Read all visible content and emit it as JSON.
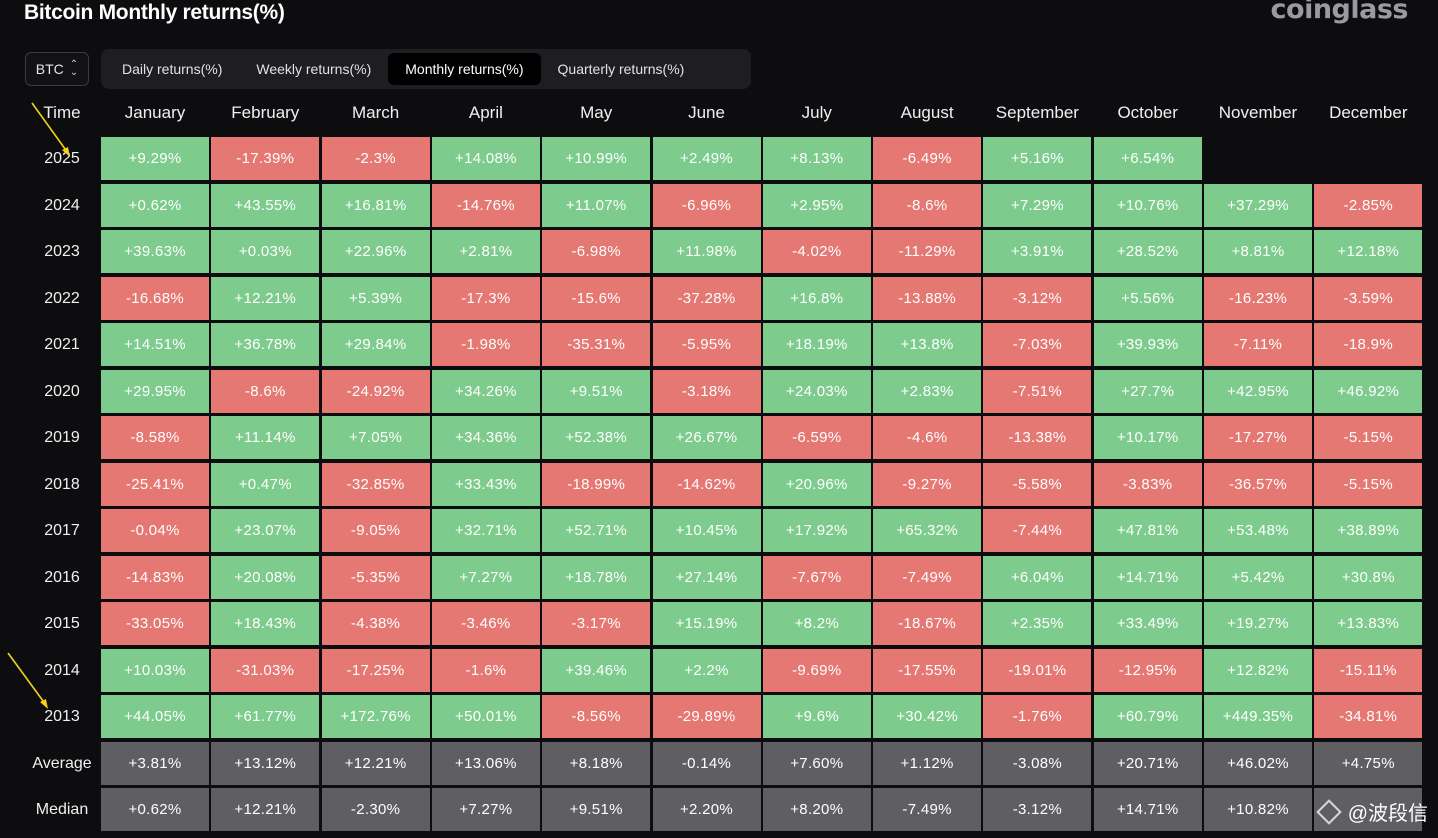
{
  "title": "Bitcoin Monthly returns(%)",
  "brand": "coinglass",
  "coin_select": {
    "value": "BTC",
    "icon": "chevron-updown-icon"
  },
  "tabs": [
    {
      "label": "Daily returns(%)",
      "active": false
    },
    {
      "label": "Weekly returns(%)",
      "active": false
    },
    {
      "label": "Monthly returns(%)",
      "active": true
    },
    {
      "label": "Quarterly returns(%)",
      "active": false
    }
  ],
  "table": {
    "row_header": "Time",
    "months": [
      "January",
      "February",
      "March",
      "April",
      "May",
      "June",
      "July",
      "August",
      "September",
      "October",
      "November",
      "December"
    ],
    "rows": [
      {
        "label": "2025",
        "values": [
          "+9.29%",
          "-17.39%",
          "-2.3%",
          "+14.08%",
          "+10.99%",
          "+2.49%",
          "+8.13%",
          "-6.49%",
          "+5.16%",
          "+6.54%",
          "",
          ""
        ]
      },
      {
        "label": "2024",
        "values": [
          "+0.62%",
          "+43.55%",
          "+16.81%",
          "-14.76%",
          "+11.07%",
          "-6.96%",
          "+2.95%",
          "-8.6%",
          "+7.29%",
          "+10.76%",
          "+37.29%",
          "-2.85%"
        ]
      },
      {
        "label": "2023",
        "values": [
          "+39.63%",
          "+0.03%",
          "+22.96%",
          "+2.81%",
          "-6.98%",
          "+11.98%",
          "-4.02%",
          "-11.29%",
          "+3.91%",
          "+28.52%",
          "+8.81%",
          "+12.18%"
        ]
      },
      {
        "label": "2022",
        "values": [
          "-16.68%",
          "+12.21%",
          "+5.39%",
          "-17.3%",
          "-15.6%",
          "-37.28%",
          "+16.8%",
          "-13.88%",
          "-3.12%",
          "+5.56%",
          "-16.23%",
          "-3.59%"
        ]
      },
      {
        "label": "2021",
        "values": [
          "+14.51%",
          "+36.78%",
          "+29.84%",
          "-1.98%",
          "-35.31%",
          "-5.95%",
          "+18.19%",
          "+13.8%",
          "-7.03%",
          "+39.93%",
          "-7.11%",
          "-18.9%"
        ]
      },
      {
        "label": "2020",
        "values": [
          "+29.95%",
          "-8.6%",
          "-24.92%",
          "+34.26%",
          "+9.51%",
          "-3.18%",
          "+24.03%",
          "+2.83%",
          "-7.51%",
          "+27.7%",
          "+42.95%",
          "+46.92%"
        ]
      },
      {
        "label": "2019",
        "values": [
          "-8.58%",
          "+11.14%",
          "+7.05%",
          "+34.36%",
          "+52.38%",
          "+26.67%",
          "-6.59%",
          "-4.6%",
          "-13.38%",
          "+10.17%",
          "-17.27%",
          "-5.15%"
        ]
      },
      {
        "label": "2018",
        "values": [
          "-25.41%",
          "+0.47%",
          "-32.85%",
          "+33.43%",
          "-18.99%",
          "-14.62%",
          "+20.96%",
          "-9.27%",
          "-5.58%",
          "-3.83%",
          "-36.57%",
          "-5.15%"
        ]
      },
      {
        "label": "2017",
        "values": [
          "-0.04%",
          "+23.07%",
          "-9.05%",
          "+32.71%",
          "+52.71%",
          "+10.45%",
          "+17.92%",
          "+65.32%",
          "-7.44%",
          "+47.81%",
          "+53.48%",
          "+38.89%"
        ]
      },
      {
        "label": "2016",
        "values": [
          "-14.83%",
          "+20.08%",
          "-5.35%",
          "+7.27%",
          "+18.78%",
          "+27.14%",
          "-7.67%",
          "-7.49%",
          "+6.04%",
          "+14.71%",
          "+5.42%",
          "+30.8%"
        ]
      },
      {
        "label": "2015",
        "values": [
          "-33.05%",
          "+18.43%",
          "-4.38%",
          "-3.46%",
          "-3.17%",
          "+15.19%",
          "+8.2%",
          "-18.67%",
          "+2.35%",
          "+33.49%",
          "+19.27%",
          "+13.83%"
        ]
      },
      {
        "label": "2014",
        "values": [
          "+10.03%",
          "-31.03%",
          "-17.25%",
          "-1.6%",
          "+39.46%",
          "+2.2%",
          "-9.69%",
          "-17.55%",
          "-19.01%",
          "-12.95%",
          "+12.82%",
          "-15.11%"
        ]
      },
      {
        "label": "2013",
        "values": [
          "+44.05%",
          "+61.77%",
          "+172.76%",
          "+50.01%",
          "-8.56%",
          "-29.89%",
          "+9.6%",
          "+30.42%",
          "-1.76%",
          "+60.79%",
          "+449.35%",
          "-34.81%"
        ]
      }
    ],
    "stats": [
      {
        "label": "Average",
        "values": [
          "+3.81%",
          "+13.12%",
          "+12.21%",
          "+13.06%",
          "+8.18%",
          "-0.14%",
          "+7.60%",
          "+1.12%",
          "-3.08%",
          "+20.71%",
          "+46.02%",
          "+4.75%"
        ]
      },
      {
        "label": "Median",
        "values": [
          "+0.62%",
          "+12.21%",
          "-2.30%",
          "+7.27%",
          "+9.51%",
          "+2.20%",
          "+8.20%",
          "-7.49%",
          "-3.12%",
          "+14.71%",
          "+10.82%",
          ""
        ]
      }
    ]
  },
  "watermark": "@波段信",
  "colors": {
    "positive": "#7dcb8d",
    "negative": "#e57873",
    "stat": "#5f5f63",
    "arrow": "#f2d21b"
  }
}
